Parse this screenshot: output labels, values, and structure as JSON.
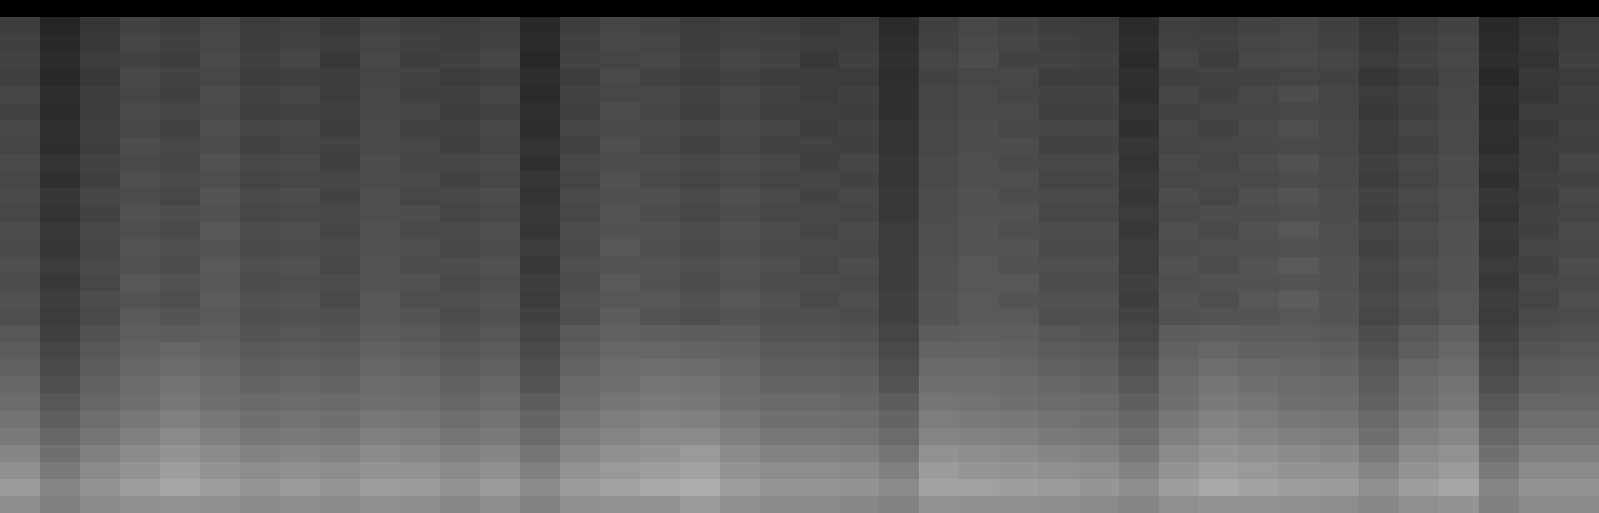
{
  "chart_data": {
    "type": "heatmap",
    "tick_labels": false,
    "zlim": [
      0,
      100
    ],
    "z": [
      [
        0,
        0,
        0,
        0,
        0,
        0,
        0,
        0,
        0,
        0,
        0,
        0,
        0,
        0,
        0,
        0,
        0,
        0,
        0,
        0,
        0,
        0,
        0,
        0,
        0,
        0,
        0,
        0,
        0,
        0,
        0,
        0,
        0,
        0,
        0,
        0,
        0,
        0,
        0,
        0
      ],
      [
        24,
        15,
        21,
        26,
        24,
        27,
        23,
        25,
        22,
        26,
        24,
        23,
        25,
        16,
        24,
        27,
        26,
        23,
        25,
        24,
        22,
        23,
        17,
        25,
        28,
        26,
        24,
        23,
        17,
        25,
        24,
        26,
        27,
        25,
        21,
        24,
        26,
        16,
        20,
        23
      ],
      [
        25,
        16,
        22,
        27,
        25,
        28,
        24,
        26,
        23,
        27,
        25,
        24,
        26,
        17,
        25,
        28,
        27,
        24,
        26,
        25,
        23,
        24,
        18,
        26,
        29,
        27,
        25,
        24,
        18,
        26,
        25,
        27,
        28,
        26,
        22,
        25,
        27,
        17,
        21,
        24
      ],
      [
        26,
        17,
        23,
        26,
        24,
        29,
        25,
        27,
        22,
        28,
        24,
        25,
        27,
        16,
        26,
        27,
        28,
        25,
        27,
        26,
        22,
        25,
        19,
        27,
        30,
        26,
        26,
        25,
        17,
        27,
        24,
        28,
        29,
        27,
        23,
        26,
        28,
        18,
        20,
        25
      ],
      [
        25,
        16,
        22,
        28,
        26,
        28,
        24,
        25,
        24,
        27,
        26,
        23,
        25,
        18,
        24,
        29,
        26,
        24,
        26,
        24,
        24,
        23,
        18,
        26,
        28,
        28,
        24,
        24,
        19,
        25,
        26,
        26,
        27,
        26,
        21,
        24,
        27,
        16,
        22,
        23
      ],
      [
        27,
        18,
        24,
        27,
        25,
        30,
        26,
        27,
        23,
        28,
        25,
        25,
        27,
        17,
        26,
        28,
        28,
        26,
        28,
        26,
        23,
        25,
        19,
        27,
        29,
        27,
        26,
        26,
        18,
        27,
        25,
        28,
        30,
        27,
        23,
        26,
        28,
        18,
        21,
        25
      ],
      [
        26,
        17,
        23,
        29,
        27,
        29,
        25,
        26,
        25,
        28,
        27,
        24,
        26,
        19,
        25,
        30,
        27,
        25,
        27,
        25,
        25,
        24,
        19,
        27,
        29,
        29,
        25,
        25,
        20,
        26,
        27,
        27,
        28,
        27,
        22,
        25,
        28,
        17,
        23,
        24
      ],
      [
        28,
        19,
        25,
        28,
        26,
        31,
        27,
        28,
        24,
        29,
        26,
        26,
        28,
        18,
        27,
        29,
        29,
        27,
        29,
        27,
        24,
        26,
        20,
        28,
        30,
        28,
        27,
        27,
        19,
        28,
        26,
        29,
        31,
        28,
        24,
        27,
        29,
        19,
        22,
        26
      ],
      [
        27,
        18,
        24,
        30,
        28,
        30,
        26,
        27,
        26,
        29,
        28,
        25,
        27,
        20,
        26,
        31,
        28,
        26,
        28,
        26,
        26,
        25,
        20,
        28,
        30,
        30,
        26,
        26,
        21,
        27,
        28,
        28,
        29,
        28,
        23,
        26,
        29,
        18,
        24,
        25
      ],
      [
        29,
        20,
        26,
        29,
        27,
        32,
        28,
        29,
        25,
        30,
        27,
        27,
        29,
        19,
        28,
        30,
        30,
        28,
        30,
        28,
        25,
        27,
        21,
        29,
        31,
        29,
        28,
        28,
        20,
        29,
        27,
        30,
        32,
        29,
        25,
        28,
        30,
        20,
        23,
        27
      ],
      [
        28,
        19,
        25,
        31,
        29,
        31,
        27,
        28,
        27,
        30,
        29,
        26,
        28,
        21,
        27,
        32,
        29,
        27,
        29,
        27,
        27,
        26,
        21,
        29,
        31,
        31,
        27,
        27,
        22,
        28,
        29,
        29,
        30,
        29,
        24,
        27,
        30,
        19,
        25,
        26
      ],
      [
        29,
        21,
        27,
        30,
        28,
        33,
        29,
        30,
        26,
        31,
        28,
        28,
        30,
        20,
        29,
        31,
        31,
        29,
        31,
        29,
        26,
        28,
        22,
        30,
        32,
        30,
        29,
        29,
        21,
        30,
        28,
        31,
        33,
        30,
        26,
        29,
        31,
        21,
        24,
        28
      ],
      [
        28,
        20,
        26,
        32,
        30,
        32,
        28,
        29,
        28,
        31,
        30,
        27,
        29,
        22,
        28,
        33,
        30,
        28,
        30,
        28,
        28,
        27,
        22,
        30,
        32,
        32,
        28,
        28,
        23,
        29,
        30,
        30,
        31,
        30,
        25,
        28,
        31,
        20,
        26,
        27
      ],
      [
        30,
        22,
        28,
        31,
        29,
        34,
        30,
        31,
        27,
        32,
        29,
        29,
        31,
        21,
        30,
        32,
        32,
        30,
        32,
        30,
        27,
        29,
        23,
        31,
        33,
        31,
        30,
        30,
        22,
        31,
        29,
        32,
        34,
        31,
        27,
        30,
        32,
        22,
        25,
        29
      ],
      [
        29,
        21,
        27,
        33,
        31,
        33,
        29,
        30,
        29,
        32,
        31,
        28,
        30,
        23,
        29,
        34,
        31,
        29,
        31,
        29,
        29,
        28,
        23,
        31,
        33,
        33,
        29,
        29,
        24,
        30,
        31,
        31,
        32,
        31,
        26,
        29,
        32,
        21,
        27,
        28
      ],
      [
        31,
        23,
        29,
        32,
        30,
        35,
        31,
        32,
        28,
        33,
        30,
        30,
        32,
        22,
        31,
        33,
        33,
        31,
        33,
        31,
        28,
        30,
        24,
        32,
        34,
        32,
        31,
        31,
        23,
        32,
        30,
        33,
        35,
        32,
        28,
        31,
        33,
        23,
        26,
        30
      ],
      [
        30,
        22,
        28,
        34,
        32,
        34,
        30,
        31,
        30,
        33,
        32,
        29,
        31,
        24,
        30,
        35,
        32,
        30,
        32,
        30,
        30,
        29,
        24,
        32,
        34,
        34,
        30,
        30,
        25,
        31,
        32,
        32,
        33,
        32,
        27,
        30,
        33,
        22,
        28,
        29
      ],
      [
        32,
        24,
        30,
        33,
        31,
        36,
        32,
        33,
        29,
        34,
        31,
        31,
        33,
        23,
        32,
        34,
        34,
        32,
        34,
        32,
        29,
        31,
        25,
        33,
        35,
        33,
        32,
        32,
        24,
        33,
        31,
        34,
        36,
        33,
        29,
        32,
        34,
        24,
        27,
        31
      ],
      [
        31,
        23,
        29,
        35,
        33,
        35,
        31,
        32,
        31,
        34,
        33,
        30,
        32,
        25,
        31,
        36,
        33,
        31,
        33,
        31,
        31,
        30,
        25,
        33,
        35,
        35,
        31,
        31,
        26,
        32,
        33,
        33,
        34,
        33,
        28,
        31,
        34,
        23,
        29,
        30
      ],
      [
        34,
        25,
        32,
        37,
        36,
        37,
        33,
        34,
        33,
        36,
        35,
        32,
        34,
        27,
        35,
        38,
        37,
        36,
        36,
        33,
        33,
        32,
        27,
        36,
        37,
        37,
        34,
        33,
        28,
        36,
        37,
        36,
        36,
        35,
        30,
        35,
        38,
        25,
        31,
        32
      ],
      [
        36,
        27,
        34,
        38,
        40,
        38,
        35,
        36,
        35,
        38,
        37,
        34,
        36,
        29,
        37,
        40,
        40,
        39,
        38,
        35,
        35,
        34,
        29,
        39,
        39,
        38,
        36,
        35,
        30,
        38,
        40,
        38,
        38,
        37,
        32,
        37,
        40,
        27,
        33,
        34
      ],
      [
        38,
        29,
        36,
        40,
        42,
        40,
        37,
        38,
        37,
        40,
        39,
        36,
        38,
        31,
        39,
        42,
        43,
        42,
        40,
        37,
        37,
        36,
        31,
        41,
        41,
        40,
        38,
        37,
        32,
        40,
        43,
        41,
        40,
        39,
        34,
        40,
        42,
        29,
        35,
        36
      ],
      [
        40,
        31,
        38,
        42,
        45,
        42,
        39,
        40,
        39,
        42,
        41,
        38,
        40,
        33,
        41,
        44,
        46,
        45,
        42,
        39,
        39,
        38,
        33,
        44,
        43,
        42,
        40,
        39,
        34,
        42,
        46,
        44,
        42,
        41,
        36,
        42,
        45,
        31,
        37,
        38
      ],
      [
        42,
        34,
        40,
        44,
        47,
        44,
        41,
        42,
        41,
        44,
        43,
        40,
        42,
        36,
        43,
        46,
        48,
        47,
        44,
        41,
        41,
        40,
        36,
        46,
        45,
        44,
        42,
        41,
        37,
        44,
        48,
        46,
        44,
        43,
        38,
        44,
        47,
        34,
        40,
        40
      ],
      [
        45,
        37,
        43,
        47,
        50,
        47,
        44,
        45,
        44,
        47,
        46,
        43,
        45,
        39,
        46,
        49,
        51,
        50,
        47,
        44,
        44,
        43,
        39,
        49,
        48,
        47,
        45,
        44,
        40,
        47,
        51,
        49,
        47,
        46,
        41,
        47,
        50,
        37,
        43,
        43
      ],
      [
        48,
        40,
        46,
        50,
        54,
        50,
        47,
        48,
        47,
        50,
        49,
        46,
        48,
        42,
        49,
        52,
        54,
        54,
        50,
        47,
        47,
        46,
        42,
        52,
        51,
        50,
        48,
        47,
        43,
        50,
        54,
        52,
        50,
        49,
        44,
        50,
        53,
        40,
        46,
        46
      ],
      [
        52,
        44,
        50,
        54,
        58,
        54,
        51,
        52,
        51,
        54,
        53,
        50,
        52,
        46,
        53,
        56,
        58,
        60,
        54,
        51,
        51,
        50,
        46,
        57,
        55,
        54,
        52,
        51,
        47,
        54,
        58,
        56,
        54,
        53,
        48,
        54,
        57,
        44,
        50,
        50
      ],
      [
        56,
        48,
        54,
        58,
        62,
        58,
        55,
        56,
        55,
        58,
        57,
        54,
        56,
        50,
        57,
        60,
        62,
        64,
        58,
        55,
        55,
        54,
        50,
        61,
        59,
        58,
        56,
        55,
        51,
        58,
        62,
        60,
        58,
        57,
        52,
        58,
        61,
        48,
        54,
        54
      ],
      [
        60,
        52,
        58,
        62,
        65,
        62,
        59,
        60,
        59,
        62,
        61,
        58,
        60,
        54,
        61,
        64,
        66,
        68,
        62,
        59,
        59,
        58,
        54,
        64,
        63,
        62,
        60,
        59,
        55,
        62,
        66,
        64,
        62,
        61,
        56,
        62,
        65,
        52,
        58,
        58
      ],
      [
        55,
        50,
        54,
        56,
        58,
        56,
        54,
        55,
        54,
        56,
        55,
        53,
        55,
        51,
        56,
        57,
        58,
        60,
        56,
        54,
        54,
        53,
        51,
        57,
        56,
        56,
        55,
        54,
        52,
        56,
        58,
        57,
        56,
        55,
        53,
        56,
        58,
        50,
        54,
        54
      ]
    ]
  }
}
